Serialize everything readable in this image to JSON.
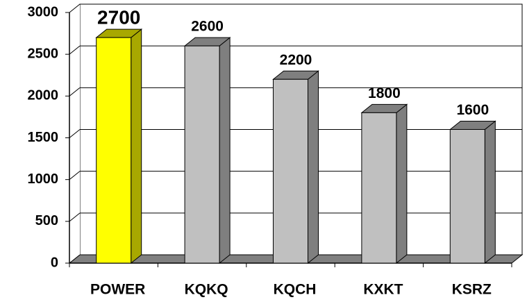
{
  "chart_data": {
    "type": "bar3d",
    "categories": [
      "POWER",
      "KQKQ",
      "KQCH",
      "KXKT",
      "KSRZ"
    ],
    "values": [
      2700,
      2600,
      2200,
      1800,
      1600
    ],
    "colors": [
      "#ffff00",
      "#c0c0c0",
      "#c0c0c0",
      "#c0c0c0",
      "#c0c0c0"
    ],
    "ylim": [
      0,
      3000
    ],
    "yticks": [
      0,
      500,
      1000,
      1500,
      2000,
      2500,
      3000
    ],
    "grid": true
  }
}
